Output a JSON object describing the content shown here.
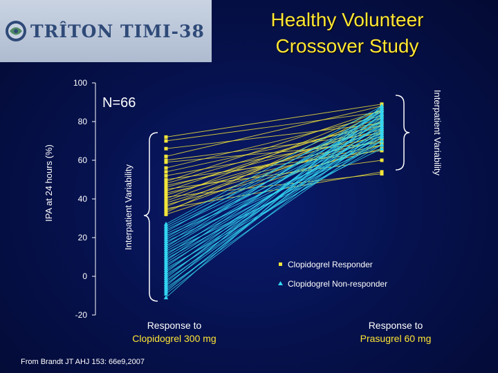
{
  "header": {
    "logo_text": "TRÎTON TIMI-38",
    "title_line1": "Healthy Volunteer",
    "title_line2": "Crossover Study"
  },
  "footer": {
    "citation": "From Brandt JT AHJ 153: 66e9,2007"
  },
  "colors": {
    "responder": "#f2e53a",
    "non_responder": "#33d6f2",
    "axis": "#ffffff",
    "title": "#ffe633",
    "xlabel_accent": "#ffe633"
  },
  "chart_data": {
    "type": "line",
    "title": "",
    "n_label": "N=66",
    "ylabel": "IPA at 24 hours (%)",
    "ylim": [
      -20,
      100
    ],
    "yticks": [
      100,
      80,
      60,
      40,
      20,
      0,
      -20
    ],
    "grid": false,
    "categories": [
      {
        "line1": "Response to",
        "line2": "Clopidogrel 300 mg"
      },
      {
        "line1": "Response to",
        "line2": "Prasugrel 60 mg"
      }
    ],
    "annotations": {
      "left_brace": "Interpatient Variability",
      "right_brace": "Interpatient Variability"
    },
    "legend": {
      "placement": "bottom-right",
      "items": [
        {
          "name": "Clopidogrel Responder",
          "marker": "square",
          "color": "#f2e53a"
        },
        {
          "name": "Clopidogrel Non-responder",
          "marker": "triangle",
          "color": "#33d6f2"
        }
      ]
    },
    "series": [
      {
        "name": "Clopidogrel Responder",
        "pairs": [
          [
            72,
            89
          ],
          [
            70,
            85
          ],
          [
            66,
            79
          ],
          [
            62,
            88
          ],
          [
            60,
            74
          ],
          [
            59,
            69
          ],
          [
            56,
            83
          ],
          [
            54,
            78
          ],
          [
            52,
            72
          ],
          [
            50,
            65
          ],
          [
            49,
            86
          ],
          [
            48,
            80
          ],
          [
            47,
            70
          ],
          [
            46,
            76
          ],
          [
            45,
            60
          ],
          [
            44,
            82
          ],
          [
            43,
            68
          ],
          [
            42,
            75
          ],
          [
            41,
            53
          ],
          [
            40,
            86
          ],
          [
            39,
            78
          ],
          [
            38,
            71
          ],
          [
            37,
            66
          ],
          [
            36,
            80
          ],
          [
            35,
            54
          ],
          [
            34,
            74
          ],
          [
            33,
            85
          ],
          [
            32,
            68
          ]
        ]
      },
      {
        "name": "Clopidogrel Non-responder",
        "pairs": [
          [
            27,
            88
          ],
          [
            26,
            84
          ],
          [
            25,
            80
          ],
          [
            24,
            77
          ],
          [
            23,
            86
          ],
          [
            22,
            74
          ],
          [
            21,
            70
          ],
          [
            20,
            82
          ],
          [
            19,
            78
          ],
          [
            18,
            68
          ],
          [
            17,
            85
          ],
          [
            16,
            73
          ],
          [
            15,
            87
          ],
          [
            14,
            80
          ],
          [
            13,
            72
          ],
          [
            12,
            66
          ],
          [
            11,
            83
          ],
          [
            10,
            76
          ],
          [
            9,
            70
          ],
          [
            8,
            86
          ],
          [
            7,
            78
          ],
          [
            6,
            73
          ],
          [
            5,
            81
          ],
          [
            4,
            68
          ],
          [
            3,
            75
          ],
          [
            2,
            84
          ],
          [
            1,
            70
          ],
          [
            0,
            79
          ],
          [
            -1,
            86
          ],
          [
            -2,
            74
          ],
          [
            -3,
            82
          ],
          [
            -4,
            77
          ],
          [
            -5,
            88
          ],
          [
            -6,
            72
          ],
          [
            -7,
            80
          ],
          [
            -8,
            84
          ],
          [
            -9,
            76
          ],
          [
            -11,
            88
          ]
        ]
      }
    ]
  }
}
